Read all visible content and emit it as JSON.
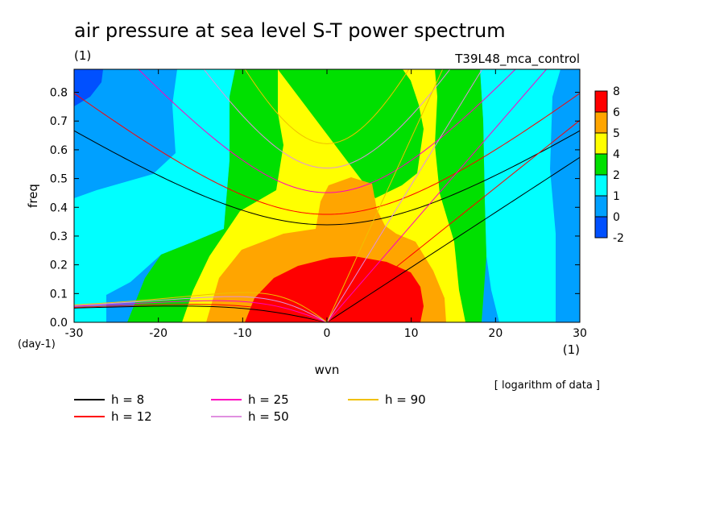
{
  "chart_data": {
    "type": "heatmap",
    "title": "air pressure at sea level S-T power spectrum",
    "units": "(1)",
    "experiment": "T39L48_mca_control",
    "xlabel": "wvn",
    "ylabel": "freq",
    "x_units": "(1)",
    "y_units": "(day-1)",
    "xlim": [
      -30,
      30
    ],
    "ylim": [
      0,
      0.88
    ],
    "x_ticks": [
      -30,
      -20,
      -10,
      0,
      10,
      20,
      30
    ],
    "x_tick_labels": [
      "-30",
      "-20",
      "-10",
      "0",
      "10",
      "20",
      "30"
    ],
    "y_ticks": [
      0.0,
      0.1,
      0.2,
      0.3,
      0.4,
      0.5,
      0.6,
      0.7,
      0.8
    ],
    "y_tick_labels": [
      "0.0",
      "0.1",
      "0.2",
      "0.3",
      "0.4",
      "0.5",
      "0.6",
      "0.7",
      "0.8"
    ],
    "note": "[ logarithm of data ]",
    "colorbar": {
      "labels": [
        "8",
        "6",
        "5",
        "4",
        "2",
        "1",
        "0",
        "-2"
      ],
      "colors": [
        "#ff0000",
        "#ffa500",
        "#ffff00",
        "#00e000",
        "#00ffff",
        "#00a0ff",
        "#0050ff"
      ]
    },
    "contour_levels": [
      {
        "label": "-2 to 0",
        "color": "#0050ff"
      },
      {
        "label": "0 to 1",
        "color": "#00a0ff"
      },
      {
        "label": "1 to 2",
        "color": "#00ffff"
      },
      {
        "label": "2 to 4",
        "color": "#00e000"
      },
      {
        "label": "4 to 5",
        "color": "#ffff00"
      },
      {
        "label": "5 to 6",
        "color": "#ffa500"
      },
      {
        "label": "6 to 8",
        "color": "#ff0000"
      }
    ],
    "dispersion_curves": [
      {
        "name": "h =  8",
        "label": "h =  8",
        "h": 8,
        "color": "#000000"
      },
      {
        "name": "h = 12",
        "label": "h = 12",
        "h": 12,
        "color": "#ff0000"
      },
      {
        "name": "h = 25",
        "label": "h = 25",
        "h": 25,
        "color": "#ff00c0"
      },
      {
        "name": "h = 50",
        "label": "h = 50",
        "h": 50,
        "color": "#e090e0"
      },
      {
        "name": "h = 90",
        "label": "h = 90",
        "h": 90,
        "color": "#f0c000"
      }
    ]
  }
}
